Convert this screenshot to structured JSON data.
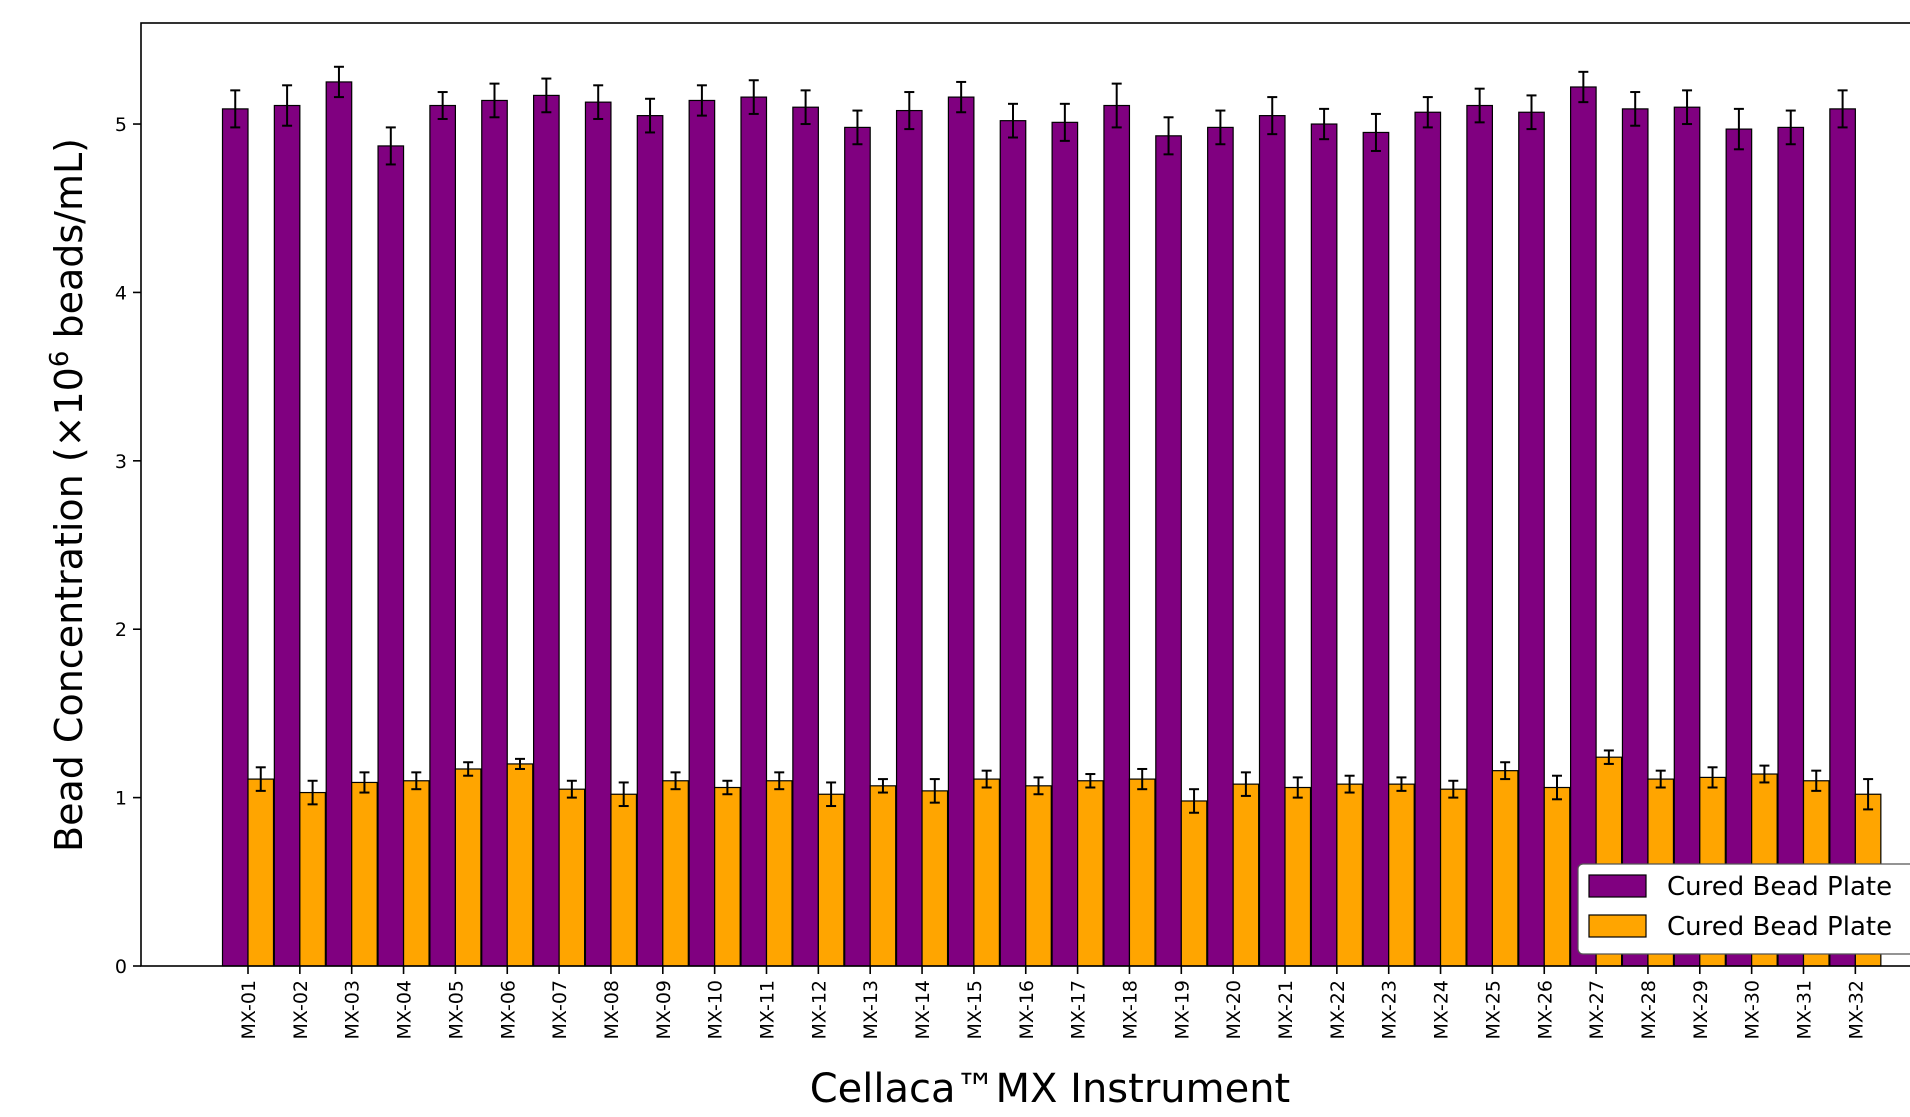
{
  "chart_data": {
    "type": "bar",
    "title": "",
    "xlabel": "Cellaca™MX Instrument",
    "ylabel": {
      "prefix": "Bead Concentration (×10",
      "superscript": "6",
      "suffix": " beads/mL)"
    },
    "ylim": [
      0,
      5.6
    ],
    "yticks": [
      0,
      1,
      2,
      3,
      4,
      5
    ],
    "grid": false,
    "legend_position": "bottom-right",
    "categories": [
      "MX-01",
      "MX-02",
      "MX-03",
      "MX-04",
      "MX-05",
      "MX-06",
      "MX-07",
      "MX-08",
      "MX-09",
      "MX-10",
      "MX-11",
      "MX-12",
      "MX-13",
      "MX-14",
      "MX-15",
      "MX-16",
      "MX-17",
      "MX-18",
      "MX-19",
      "MX-20",
      "MX-21",
      "MX-22",
      "MX-23",
      "MX-24",
      "MX-25",
      "MX-26",
      "MX-27",
      "MX-28",
      "MX-29",
      "MX-30",
      "MX-31",
      "MX-32"
    ],
    "series": [
      {
        "name": "Cured Bead Plate",
        "color": "#800080",
        "values": [
          5.09,
          5.11,
          5.25,
          4.87,
          5.11,
          5.14,
          5.17,
          5.13,
          5.05,
          5.14,
          5.16,
          5.1,
          4.98,
          5.08,
          5.16,
          5.02,
          5.01,
          5.11,
          4.93,
          4.98,
          5.05,
          5.0,
          4.95,
          5.07,
          5.11,
          5.07,
          5.22,
          5.09,
          5.1,
          4.97,
          4.98,
          5.09
        ],
        "errors": [
          0.11,
          0.12,
          0.09,
          0.11,
          0.08,
          0.1,
          0.1,
          0.1,
          0.1,
          0.09,
          0.1,
          0.1,
          0.1,
          0.11,
          0.09,
          0.1,
          0.11,
          0.13,
          0.11,
          0.1,
          0.11,
          0.09,
          0.11,
          0.09,
          0.1,
          0.1,
          0.09,
          0.1,
          0.1,
          0.12,
          0.1,
          0.11
        ]
      },
      {
        "name": "Cured Bead Plate",
        "color": "#FFA500",
        "values": [
          1.11,
          1.03,
          1.09,
          1.1,
          1.17,
          1.2,
          1.05,
          1.02,
          1.1,
          1.06,
          1.1,
          1.02,
          1.07,
          1.04,
          1.11,
          1.07,
          1.1,
          1.11,
          0.98,
          1.08,
          1.06,
          1.08,
          1.08,
          1.05,
          1.16,
          1.06,
          1.24,
          1.11,
          1.12,
          1.14,
          1.1,
          1.02
        ],
        "errors": [
          0.07,
          0.07,
          0.06,
          0.05,
          0.04,
          0.03,
          0.05,
          0.07,
          0.05,
          0.04,
          0.05,
          0.07,
          0.04,
          0.07,
          0.05,
          0.05,
          0.04,
          0.06,
          0.07,
          0.07,
          0.06,
          0.05,
          0.04,
          0.05,
          0.05,
          0.07,
          0.04,
          0.05,
          0.06,
          0.05,
          0.06,
          0.09
        ]
      }
    ]
  }
}
